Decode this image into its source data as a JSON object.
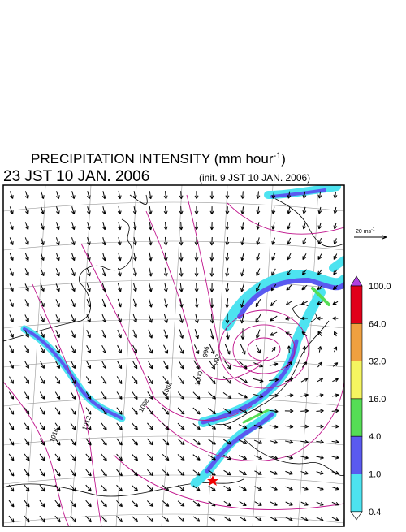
{
  "header": {
    "title": "PRECIPITATION INTENSITY (mm hour",
    "title_sup": "-1",
    "title_end": ")",
    "time": "23 JST 10 JAN. 2006",
    "init": "(init. 9 JST 10 JAN. 2006)"
  },
  "wind_scale": {
    "label": "20 ms",
    "label_sup": "-1"
  },
  "colorbar": {
    "levels": [
      "100.0",
      "64.0",
      "32.0",
      "16.0",
      "4.0",
      "1.0",
      "0.4"
    ]
  },
  "contours": {
    "labels": [
      "1016",
      "1012",
      "1008",
      "1004",
      "1000",
      "996",
      "992"
    ]
  }
}
